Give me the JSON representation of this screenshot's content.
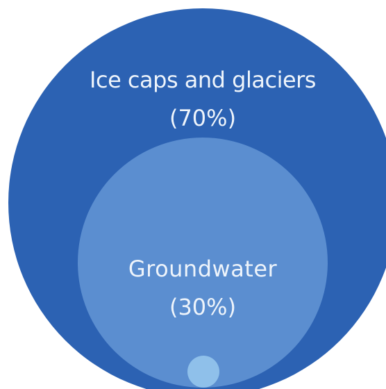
{
  "colors": {
    "outer_circle": "#2c62b3",
    "inner_circle": "#5b8ed0",
    "small_circle": "#8fc0ea",
    "text": "#eef4fb"
  },
  "categories": [
    {
      "name": "Ice caps and glaciers",
      "percent_label": "(70%)",
      "share": 70
    },
    {
      "name": "Groundwater",
      "percent_label": "(30%)",
      "share": 30
    }
  ]
}
